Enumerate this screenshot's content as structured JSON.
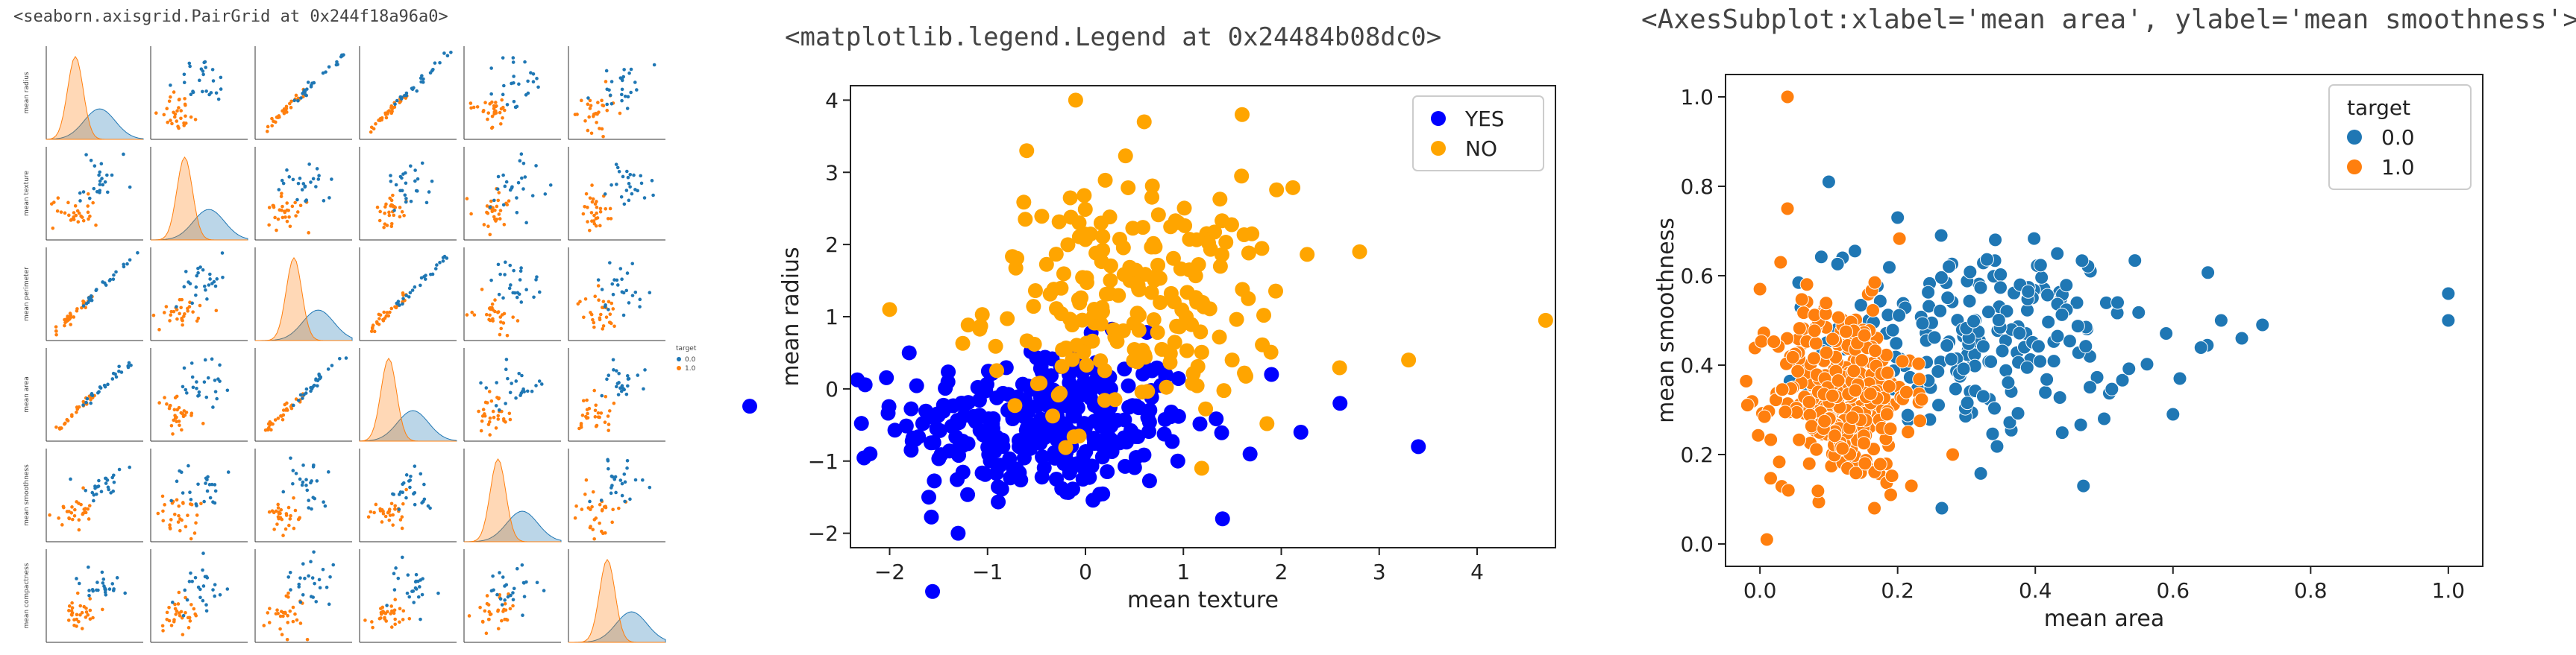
{
  "outputs": {
    "pairgrid_repr": "<seaborn.axisgrid.PairGrid at 0x244f18a96a0>",
    "legend_repr": "<matplotlib.legend.Legend at 0x24484b08dc0>",
    "axes_repr": "<AxesSubplot:xlabel='mean area', ylabel='mean smoothness'>"
  },
  "colors": {
    "blue_sns": "#1f77b4",
    "orange_sns": "#ff7f0e",
    "blue_mpl": "#0000ff",
    "orange_mpl": "#ffa500"
  },
  "chart_data": [
    {
      "type": "scatter",
      "kind": "pairgrid",
      "variables": [
        "mean radius",
        "mean texture",
        "mean perimeter",
        "mean area",
        "mean smoothness",
        "mean compactness"
      ],
      "hue": "target",
      "legend": {
        "title": "target",
        "entries": [
          "0.0",
          "1.0"
        ],
        "placement": "right"
      },
      "diagonal": "kde",
      "grid_size": 6
    },
    {
      "type": "scatter",
      "xlabel": "mean texture",
      "ylabel": "mean radius",
      "xlim": [
        -2.4,
        4.8
      ],
      "ylim": [
        -2.2,
        4.2
      ],
      "xticks": [
        -2,
        -1,
        0,
        1,
        2,
        3,
        4
      ],
      "yticks": [
        -2,
        -1,
        0,
        1,
        2,
        3,
        4
      ],
      "legend": {
        "placement": "top-right"
      },
      "series": [
        {
          "name": "YES",
          "color": "#0000ff",
          "cluster": {
            "cx": -0.4,
            "cy": -0.5,
            "sx": 0.75,
            "sy": 0.55,
            "n": 300
          },
          "extra": [
            [
              -2.2,
              -0.9
            ],
            [
              -1.8,
              0.5
            ],
            [
              -1.3,
              -2.0
            ],
            [
              3.4,
              -0.8
            ],
            [
              2.6,
              -0.2
            ],
            [
              1.9,
              0.2
            ],
            [
              1.4,
              -1.8
            ],
            [
              2.2,
              -0.6
            ],
            [
              -1.6,
              -1.5
            ]
          ]
        },
        {
          "name": "NO",
          "color": "#ffa500",
          "cluster": {
            "cx": 0.5,
            "cy": 1.2,
            "sx": 0.75,
            "sy": 0.8,
            "n": 210
          },
          "extra": [
            [
              -0.1,
              4.0
            ],
            [
              0.6,
              3.7
            ],
            [
              1.6,
              3.8
            ],
            [
              4.7,
              0.95
            ],
            [
              -2.0,
              1.1
            ],
            [
              3.3,
              0.4
            ],
            [
              2.8,
              1.9
            ],
            [
              -0.6,
              3.3
            ]
          ]
        }
      ]
    },
    {
      "type": "scatter",
      "xlabel": "mean area",
      "ylabel": "mean smoothness",
      "xlim": [
        -0.05,
        1.05
      ],
      "ylim": [
        -0.05,
        1.05
      ],
      "xticks": [
        0.0,
        0.2,
        0.4,
        0.6,
        0.8,
        1.0
      ],
      "yticks": [
        0.0,
        0.2,
        0.4,
        0.6,
        0.8,
        1.0
      ],
      "tick_labels_x": [
        "0.0",
        "0.2",
        "0.4",
        "0.6",
        "0.8",
        "1.0"
      ],
      "tick_labels_y": [
        "0.0",
        "0.2",
        "0.4",
        "0.6",
        "0.8",
        "1.0"
      ],
      "legend": {
        "title": "target",
        "placement": "top-right"
      },
      "series": [
        {
          "name": "0.0",
          "color": "#1f77b4",
          "cluster": {
            "cx": 0.32,
            "cy": 0.46,
            "sx": 0.11,
            "sy": 0.11,
            "n": 210
          },
          "extra": [
            [
              1.0,
              0.56
            ],
            [
              1.0,
              0.5
            ],
            [
              0.73,
              0.49
            ],
            [
              0.7,
              0.46
            ],
            [
              0.67,
              0.5
            ],
            [
              0.61,
              0.37
            ],
            [
              0.6,
              0.29
            ],
            [
              0.1,
              0.81
            ],
            [
              0.2,
              0.73
            ],
            [
              0.5,
              0.28
            ]
          ]
        },
        {
          "name": "1.0",
          "color": "#ff7f0e",
          "cluster": {
            "cx": 0.12,
            "cy": 0.34,
            "sx": 0.05,
            "sy": 0.1,
            "n": 330
          },
          "extra": [
            [
              0.04,
              1.0
            ],
            [
              0.01,
              0.01
            ],
            [
              0.04,
              0.75
            ],
            [
              0.03,
              0.63
            ],
            [
              0.0,
              0.57
            ],
            [
              0.22,
              0.13
            ],
            [
              0.28,
              0.2
            ],
            [
              0.19,
              0.11
            ]
          ]
        }
      ]
    }
  ]
}
